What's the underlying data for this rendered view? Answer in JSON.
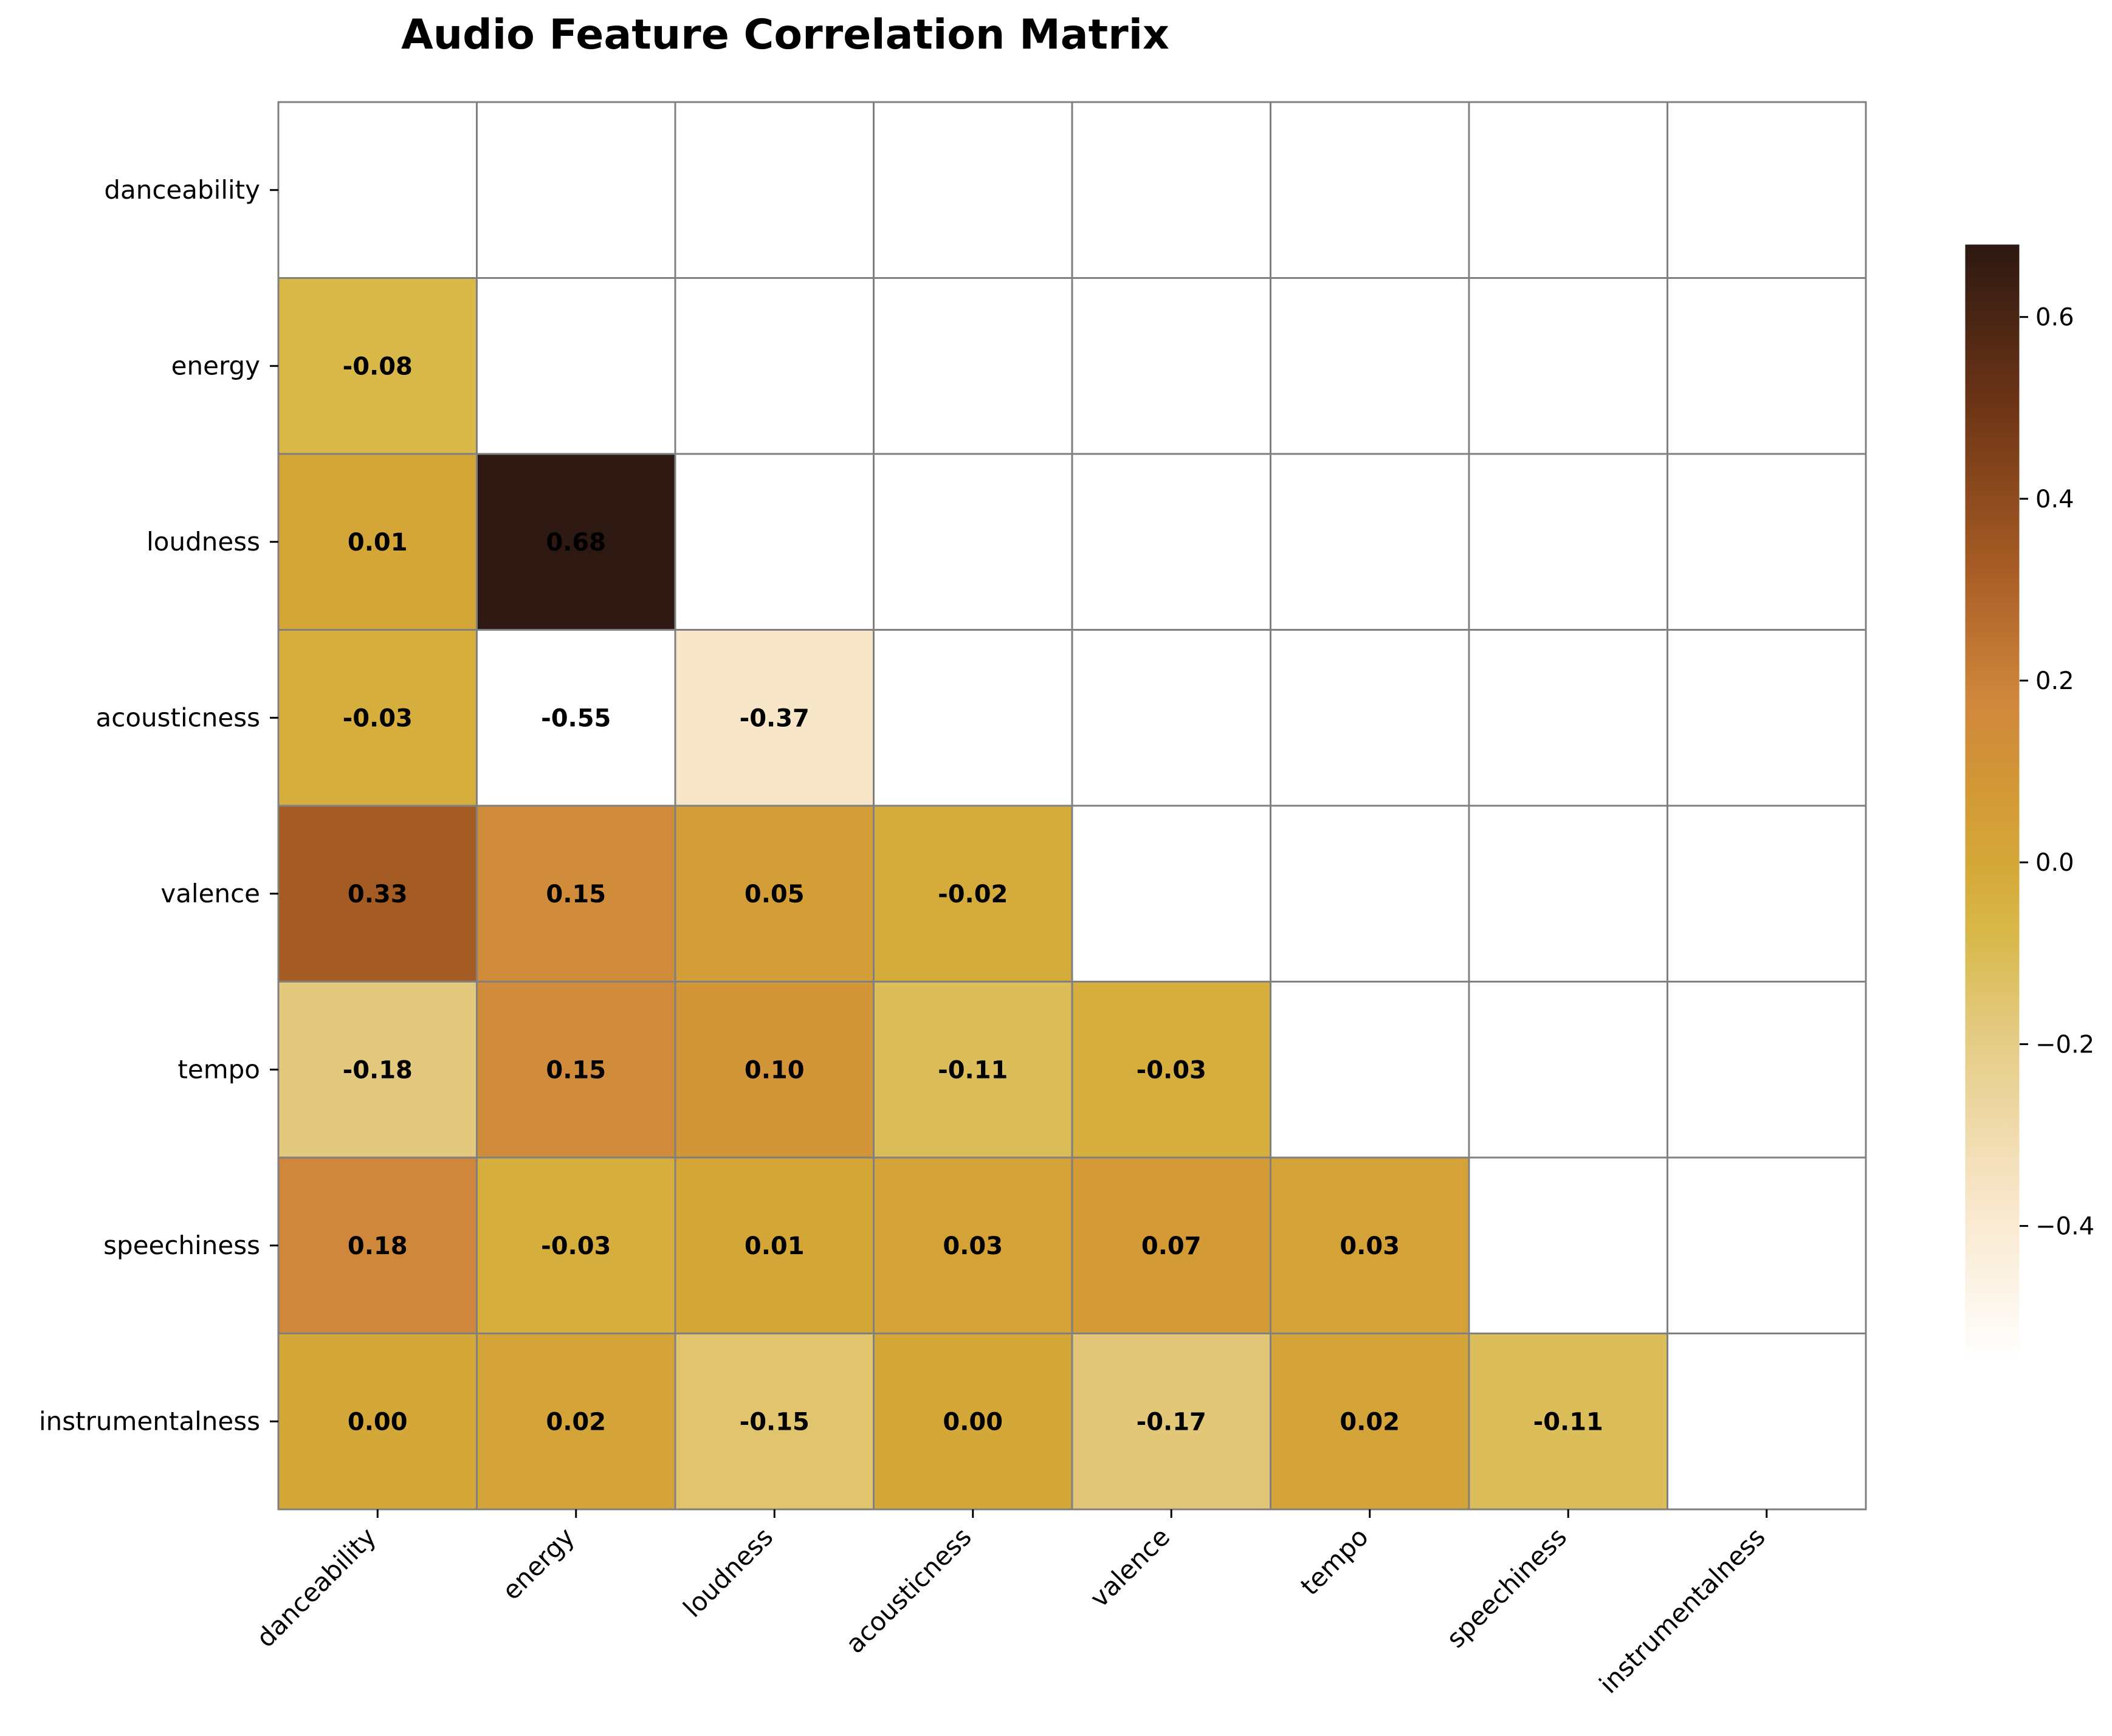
{
  "chart_data": {
    "type": "heatmap",
    "title": "Audio Feature Correlation Matrix",
    "row_labels": [
      "danceability",
      "energy",
      "loudness",
      "acousticness",
      "valence",
      "tempo",
      "speechiness",
      "instrumentalness"
    ],
    "col_labels": [
      "danceability",
      "energy",
      "loudness",
      "acousticness",
      "valence",
      "tempo",
      "speechiness",
      "instrumentalness"
    ],
    "mask": "upper-triangle-including-diagonal",
    "values": [
      [
        null,
        null,
        null,
        null,
        null,
        null,
        null,
        null
      ],
      [
        -0.08,
        null,
        null,
        null,
        null,
        null,
        null,
        null
      ],
      [
        0.01,
        0.68,
        null,
        null,
        null,
        null,
        null,
        null
      ],
      [
        -0.03,
        -0.55,
        -0.37,
        null,
        null,
        null,
        null,
        null
      ],
      [
        0.33,
        0.15,
        0.05,
        -0.02,
        null,
        null,
        null,
        null
      ],
      [
        -0.18,
        0.15,
        0.1,
        -0.11,
        -0.03,
        null,
        null,
        null
      ],
      [
        0.18,
        -0.03,
        0.01,
        0.03,
        0.07,
        0.03,
        null,
        null
      ],
      [
        -0.0,
        0.02,
        -0.15,
        -0.0,
        -0.17,
        0.02,
        -0.11,
        null
      ]
    ],
    "value_format": "2 decimals",
    "colorbar": {
      "range": [
        -0.55,
        0.68
      ],
      "ticks": [
        -0.4,
        -0.2,
        0.0,
        0.2,
        0.4,
        0.6
      ],
      "tick_labels": [
        "−0.4",
        "−0.2",
        "0.0",
        "0.2",
        "0.4",
        "0.6"
      ],
      "colormap": [
        {
          "v": -0.55,
          "color": "#ffffff"
        },
        {
          "v": -0.37,
          "color": "#f8e6c9"
        },
        {
          "v": -0.18,
          "color": "#e3c97e"
        },
        {
          "v": -0.08,
          "color": "#d8b849"
        },
        {
          "v": 0.0,
          "color": "#d4a838"
        },
        {
          "v": 0.08,
          "color": "#d39836"
        },
        {
          "v": 0.18,
          "color": "#cf873c"
        },
        {
          "v": 0.33,
          "color": "#a55b24"
        },
        {
          "v": 0.5,
          "color": "#6e3516"
        },
        {
          "v": 0.68,
          "color": "#2d1812"
        }
      ]
    },
    "grid": true,
    "legend": "colorbar-right"
  }
}
